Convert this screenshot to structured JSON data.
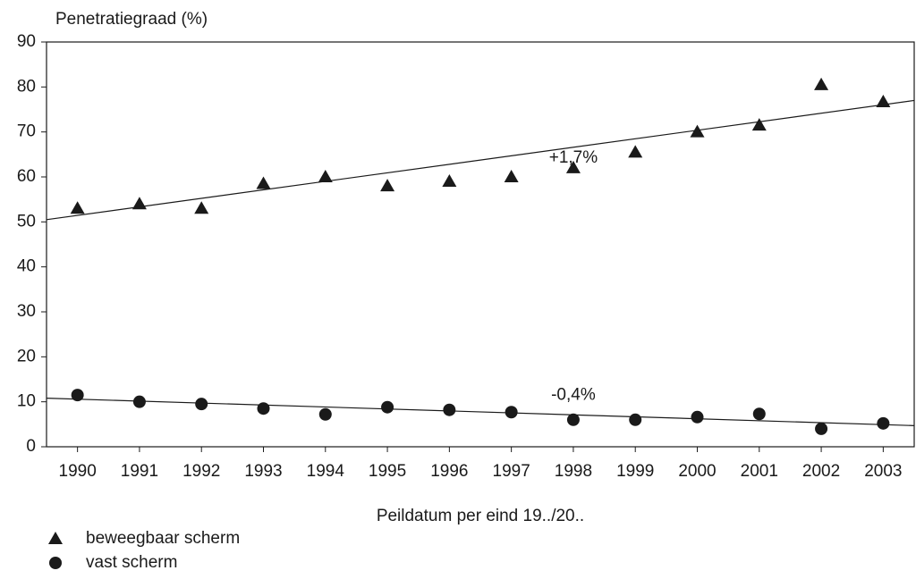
{
  "chart_data": {
    "type": "scatter",
    "title": "Penetratiegraad (%)",
    "x_label": "Peildatum per eind 19../20..",
    "categories": [
      "1990",
      "1991",
      "1992",
      "1993",
      "1994",
      "1995",
      "1996",
      "1997",
      "1998",
      "1999",
      "2000",
      "2001",
      "2002",
      "2003"
    ],
    "series": [
      {
        "name": "beweegbaar scherm",
        "marker": "triangle",
        "color": "#1a1a1a",
        "values": [
          53,
          54,
          53,
          58.5,
          60,
          58,
          59,
          60,
          62,
          65.5,
          70,
          71.5,
          80.5,
          76.7
        ],
        "trend": [
          50.5,
          77
        ],
        "annotation": "+1,7%"
      },
      {
        "name": "vast scherm",
        "marker": "circle",
        "color": "#1a1a1a",
        "values": [
          11.5,
          10,
          9.5,
          8.5,
          7.2,
          8.8,
          8.2,
          7.7,
          6,
          6,
          6.6,
          7.3,
          4,
          5.2
        ],
        "trend": [
          10.8,
          4.7
        ],
        "annotation": "-0,4%"
      }
    ],
    "ylim": [
      0,
      90
    ],
    "yticks": [
      0,
      10,
      20,
      30,
      40,
      50,
      60,
      70,
      80,
      90
    ],
    "legend": "bottom-left"
  }
}
